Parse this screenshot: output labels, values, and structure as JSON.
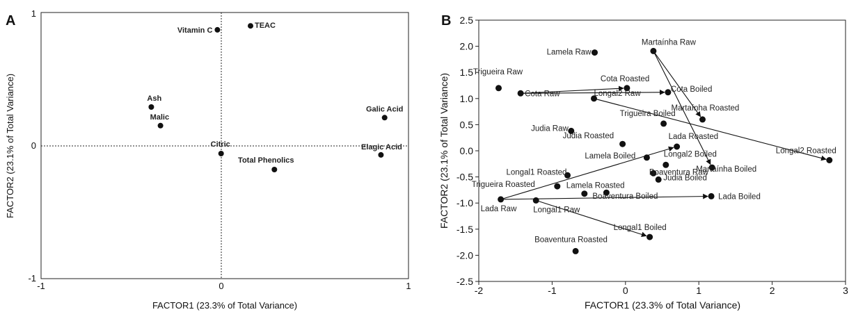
{
  "chart_data": [
    {
      "panel_letter": "A",
      "type": "scatter",
      "title": "",
      "xlabel": "FACTOR1 (23.3% of Total Variance)",
      "ylabel": "FACTOR2 (23.1% of Total Variance)",
      "xlim": [
        -1,
        1
      ],
      "ylim": [
        -1,
        1
      ],
      "xticks": [
        "-1",
        "0",
        "1"
      ],
      "yticks": [
        "-1",
        "0",
        "1"
      ],
      "grid": false,
      "reference_lines": "dotted lines at x=0 and y=0",
      "points": [
        {
          "label": "Vitamin C",
          "x": -0.04,
          "y": 0.87
        },
        {
          "label": "TEAC",
          "x": 0.14,
          "y": 0.9
        },
        {
          "label": "Ash",
          "x": -0.4,
          "y": 0.29
        },
        {
          "label": "Malic",
          "x": -0.35,
          "y": 0.15
        },
        {
          "label": "Galic Acid",
          "x": 0.87,
          "y": 0.21
        },
        {
          "label": "Citric",
          "x": -0.02,
          "y": -0.06
        },
        {
          "label": "Elagic Acid",
          "x": 0.85,
          "y": -0.07
        },
        {
          "label": "Total Phenolics",
          "x": 0.27,
          "y": -0.18
        }
      ]
    },
    {
      "panel_letter": "B",
      "type": "scatter",
      "title": "",
      "xlabel": "FACTOR1 (23.3% of Total Variance)",
      "ylabel": "FACTOR2 (23.1% of Total Variance)",
      "xlim": [
        -2,
        3
      ],
      "ylim": [
        -2.5,
        2.5
      ],
      "xticks": [
        "-2",
        "-1",
        "0",
        "1",
        "2",
        "3"
      ],
      "yticks": [
        "2.5",
        "2.0",
        "1.5",
        "1.0",
        "0.5",
        "0.0",
        "-0.5",
        "-1.0",
        "-1.5",
        "-2.0",
        "-2.5"
      ],
      "grid": false,
      "points": [
        {
          "label": "Martaínha Raw",
          "x": 0.38,
          "y": 1.91
        },
        {
          "label": "Lamela Raw",
          "x": -0.42,
          "y": 1.88
        },
        {
          "label": "Trigueira Raw",
          "x": -1.73,
          "y": 1.2
        },
        {
          "label": "Cota Raw",
          "x": -1.43,
          "y": 1.1
        },
        {
          "label": "Cota Roasted",
          "x": 0.02,
          "y": 1.2
        },
        {
          "label": "Longal2 Raw",
          "x": -0.43,
          "y": 1.0
        },
        {
          "label": "Cota Boiled",
          "x": 0.58,
          "y": 1.12
        },
        {
          "label": "Trigueira Boiled",
          "x": 0.52,
          "y": 0.52
        },
        {
          "label": "Martaínha Roasted",
          "x": 1.05,
          "y": 0.6
        },
        {
          "label": "Judia Raw",
          "x": -0.74,
          "y": 0.38
        },
        {
          "label": "Judia Roasted",
          "x": -0.04,
          "y": 0.13
        },
        {
          "label": "Longal2 Roasted",
          "x": 2.78,
          "y": -0.18
        },
        {
          "label": "Lada Roasted",
          "x": 0.7,
          "y": 0.08
        },
        {
          "label": "Lamela Boiled",
          "x": 0.29,
          "y": -0.13
        },
        {
          "label": "Longal2 Boiled",
          "x": 0.55,
          "y": -0.27
        },
        {
          "label": "Boaventura Raw",
          "x": 0.38,
          "y": -0.43
        },
        {
          "label": "Martaínha Boiled",
          "x": 1.18,
          "y": -0.32
        },
        {
          "label": "Judia Boiled",
          "x": 0.45,
          "y": -0.55
        },
        {
          "label": "Longal1 Roasted",
          "x": -0.79,
          "y": -0.47
        },
        {
          "label": "Trigueira Roasted",
          "x": -0.93,
          "y": -0.68
        },
        {
          "label": "Lamela Roasted",
          "x": -0.56,
          "y": -0.82
        },
        {
          "label": "Boaventura Boiled",
          "x": -0.26,
          "y": -0.8
        },
        {
          "label": "Lada Raw",
          "x": -1.7,
          "y": -0.93
        },
        {
          "label": "Longal1 Raw",
          "x": -1.22,
          "y": -0.95
        },
        {
          "label": "Lada Boiled",
          "x": 1.17,
          "y": -0.87
        },
        {
          "label": "Longal1 Boiled",
          "x": 0.33,
          "y": -1.65
        },
        {
          "label": "Boaventura Roasted",
          "x": -0.68,
          "y": -1.92
        }
      ],
      "arrows": [
        {
          "from": "Cota Raw",
          "to": "Cota Roasted"
        },
        {
          "from": "Cota Raw",
          "to": "Cota Boiled"
        },
        {
          "from": "Martaínha Raw",
          "to": "Martaínha Roasted"
        },
        {
          "from": "Martaínha Raw",
          "to": "Martaínha Boiled"
        },
        {
          "from": "Longal2 Raw",
          "to": "Longal2 Roasted"
        },
        {
          "from": "Lada Raw",
          "to": "Lada Roasted"
        },
        {
          "from": "Lada Raw",
          "to": "Lada Boiled"
        },
        {
          "from": "Longal1 Raw",
          "to": "Longal1 Boiled"
        }
      ]
    }
  ]
}
